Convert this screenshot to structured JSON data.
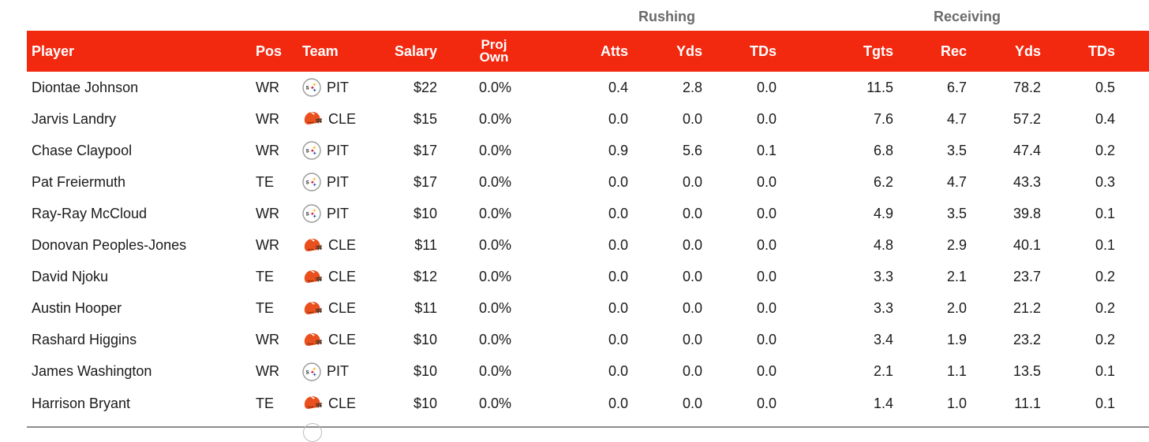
{
  "group_headers": {
    "rushing": "Rushing",
    "receiving": "Receiving"
  },
  "columns": {
    "player": "Player",
    "pos": "Pos",
    "team": "Team",
    "salary": "Salary",
    "proj_own_line1": "Proj",
    "proj_own_line2": "Own",
    "rush_atts": "Atts",
    "rush_yds": "Yds",
    "rush_tds": "TDs",
    "tgts": "Tgts",
    "rec": "Rec",
    "rec_yds": "Yds",
    "rec_tds": "TDs"
  },
  "team_logos": {
    "PIT": "steelers-logo-icon",
    "CLE": "browns-helmet-icon"
  },
  "colors": {
    "header_bg": "#f2280f",
    "group_label": "#6b6b6b",
    "browns_orange": "#e9501d",
    "steelers_yellow": "#ffb612",
    "steelers_red": "#c8102e",
    "steelers_blue": "#1f5aa8"
  },
  "rows": [
    {
      "player": "Diontae Johnson",
      "pos": "WR",
      "team": "PIT",
      "salary": "$22",
      "proj_own": "0.0%",
      "rush_atts": "0.4",
      "rush_yds": "2.8",
      "rush_tds": "0.0",
      "tgts": "11.5",
      "rec": "6.7",
      "rec_yds": "78.2",
      "rec_tds": "0.5"
    },
    {
      "player": "Jarvis Landry",
      "pos": "WR",
      "team": "CLE",
      "salary": "$15",
      "proj_own": "0.0%",
      "rush_atts": "0.0",
      "rush_yds": "0.0",
      "rush_tds": "0.0",
      "tgts": "7.6",
      "rec": "4.7",
      "rec_yds": "57.2",
      "rec_tds": "0.4"
    },
    {
      "player": "Chase Claypool",
      "pos": "WR",
      "team": "PIT",
      "salary": "$17",
      "proj_own": "0.0%",
      "rush_atts": "0.9",
      "rush_yds": "5.6",
      "rush_tds": "0.1",
      "tgts": "6.8",
      "rec": "3.5",
      "rec_yds": "47.4",
      "rec_tds": "0.2"
    },
    {
      "player": "Pat Freiermuth",
      "pos": "TE",
      "team": "PIT",
      "salary": "$17",
      "proj_own": "0.0%",
      "rush_atts": "0.0",
      "rush_yds": "0.0",
      "rush_tds": "0.0",
      "tgts": "6.2",
      "rec": "4.7",
      "rec_yds": "43.3",
      "rec_tds": "0.3"
    },
    {
      "player": "Ray-Ray McCloud",
      "pos": "WR",
      "team": "PIT",
      "salary": "$10",
      "proj_own": "0.0%",
      "rush_atts": "0.0",
      "rush_yds": "0.0",
      "rush_tds": "0.0",
      "tgts": "4.9",
      "rec": "3.5",
      "rec_yds": "39.8",
      "rec_tds": "0.1"
    },
    {
      "player": "Donovan Peoples-Jones",
      "pos": "WR",
      "team": "CLE",
      "salary": "$11",
      "proj_own": "0.0%",
      "rush_atts": "0.0",
      "rush_yds": "0.0",
      "rush_tds": "0.0",
      "tgts": "4.8",
      "rec": "2.9",
      "rec_yds": "40.1",
      "rec_tds": "0.1"
    },
    {
      "player": "David Njoku",
      "pos": "TE",
      "team": "CLE",
      "salary": "$12",
      "proj_own": "0.0%",
      "rush_atts": "0.0",
      "rush_yds": "0.0",
      "rush_tds": "0.0",
      "tgts": "3.3",
      "rec": "2.1",
      "rec_yds": "23.7",
      "rec_tds": "0.2"
    },
    {
      "player": "Austin Hooper",
      "pos": "TE",
      "team": "CLE",
      "salary": "$11",
      "proj_own": "0.0%",
      "rush_atts": "0.0",
      "rush_yds": "0.0",
      "rush_tds": "0.0",
      "tgts": "3.3",
      "rec": "2.0",
      "rec_yds": "21.2",
      "rec_tds": "0.2"
    },
    {
      "player": "Rashard Higgins",
      "pos": "WR",
      "team": "CLE",
      "salary": "$10",
      "proj_own": "0.0%",
      "rush_atts": "0.0",
      "rush_yds": "0.0",
      "rush_tds": "0.0",
      "tgts": "3.4",
      "rec": "1.9",
      "rec_yds": "23.2",
      "rec_tds": "0.2"
    },
    {
      "player": "James Washington",
      "pos": "WR",
      "team": "PIT",
      "salary": "$10",
      "proj_own": "0.0%",
      "rush_atts": "0.0",
      "rush_yds": "0.0",
      "rush_tds": "0.0",
      "tgts": "2.1",
      "rec": "1.1",
      "rec_yds": "13.5",
      "rec_tds": "0.1"
    },
    {
      "player": "Harrison Bryant",
      "pos": "TE",
      "team": "CLE",
      "salary": "$10",
      "proj_own": "0.0%",
      "rush_atts": "0.0",
      "rush_yds": "0.0",
      "rush_tds": "0.0",
      "tgts": "1.4",
      "rec": "1.0",
      "rec_yds": "11.1",
      "rec_tds": "0.1"
    }
  ]
}
